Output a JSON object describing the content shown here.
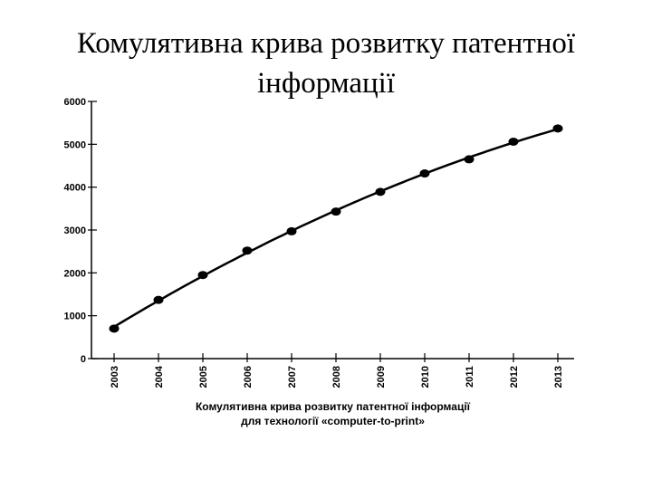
{
  "slide": {
    "title_line1": "Комулятивна крива розвитку патентної",
    "title_line2": "інформації"
  },
  "chart_data": {
    "type": "scatter",
    "x": [
      "2003",
      "2004",
      "2005",
      "2006",
      "2007",
      "2008",
      "2009",
      "2010",
      "2011",
      "2012",
      "2013"
    ],
    "values": [
      700,
      1370,
      1950,
      2520,
      2970,
      3430,
      3890,
      4320,
      4650,
      5060,
      5370
    ],
    "trend_line": true,
    "ylim": [
      0,
      6000
    ],
    "yticks": [
      "0",
      "1000",
      "2000",
      "3000",
      "4000",
      "5000",
      "6000"
    ],
    "caption_line1": "Комулятивна крива розвитку патентної інформації",
    "caption_line2": "для технології «computer-to-print»",
    "grid": false,
    "colors": {
      "line": "#000000",
      "points": "#000000"
    }
  }
}
